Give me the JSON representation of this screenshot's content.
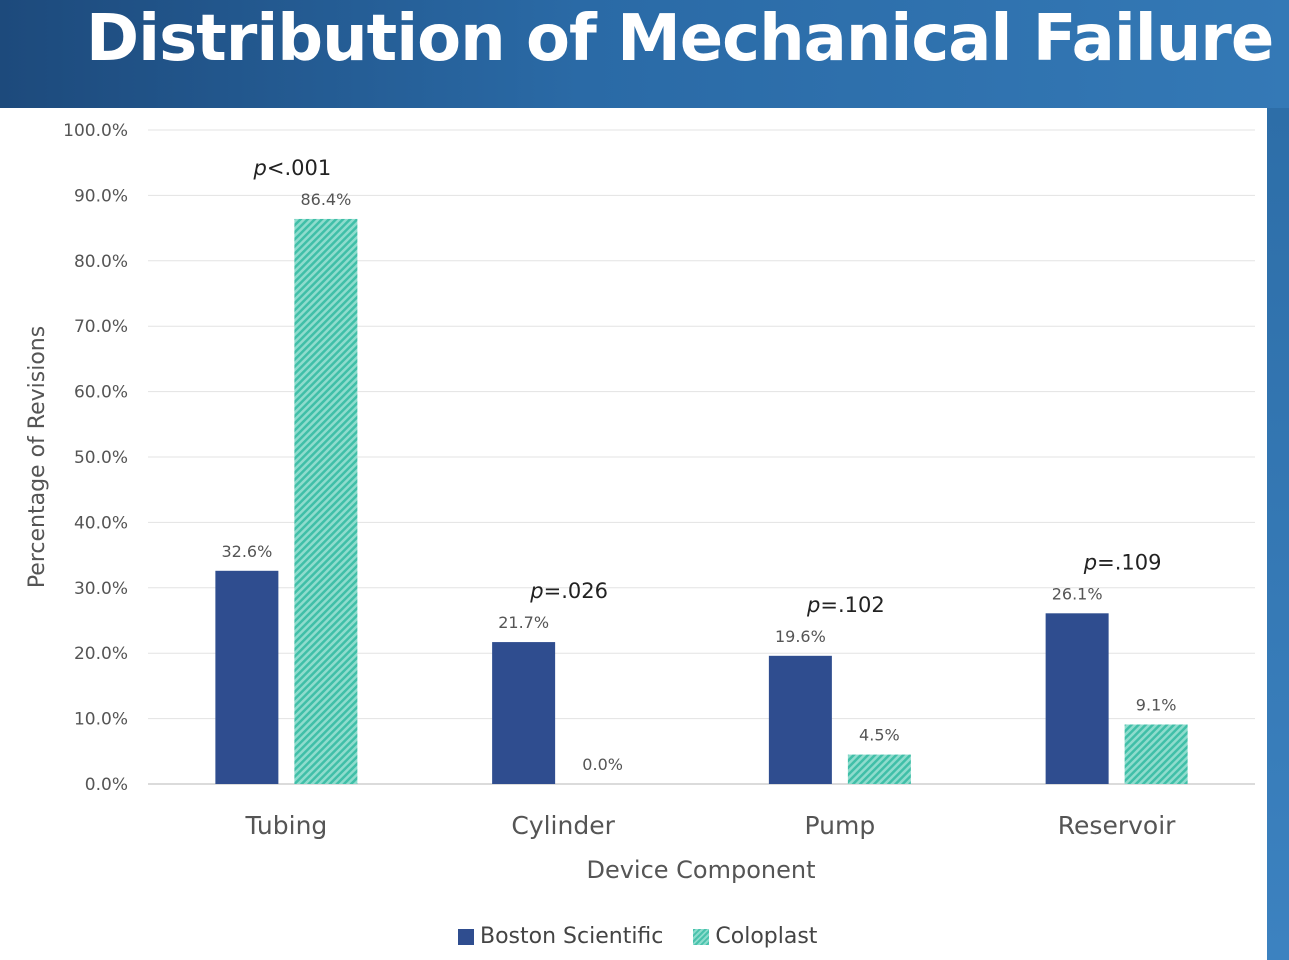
{
  "chart_data": {
    "type": "bar",
    "title": "Distribution of Mechanical Failure",
    "xlabel": "Device Component",
    "ylabel": "Percentage of Revisions",
    "categories": [
      "Tubing",
      "Cylinder",
      "Pump",
      "Reservoir"
    ],
    "series": [
      {
        "name": "Boston Scientific",
        "values": [
          32.6,
          21.7,
          19.6,
          26.1
        ],
        "labels": [
          "32.6%",
          "21.7%",
          "19.6%",
          "26.1%"
        ],
        "color": "#2f4d8f"
      },
      {
        "name": "Coloplast",
        "values": [
          86.4,
          0.0,
          4.5,
          9.1
        ],
        "labels": [
          "86.4%",
          "0.0%",
          "4.5%",
          "9.1%"
        ],
        "color": "#48c2ac"
      }
    ],
    "annotations": [
      {
        "category": "Tubing",
        "prefix": "p",
        "text": "<.001"
      },
      {
        "category": "Cylinder",
        "prefix": "p",
        "text": "=.026"
      },
      {
        "category": "Pump",
        "prefix": "p",
        "text": "=.102"
      },
      {
        "category": "Reservoir",
        "prefix": "p",
        "text": "=.109"
      }
    ],
    "yticks": [
      "0.0%",
      "10.0%",
      "20.0%",
      "30.0%",
      "40.0%",
      "50.0%",
      "60.0%",
      "70.0%",
      "80.0%",
      "90.0%",
      "100.0%"
    ],
    "ylim": [
      0,
      100
    ],
    "grid": true,
    "legend_position": "bottom"
  }
}
